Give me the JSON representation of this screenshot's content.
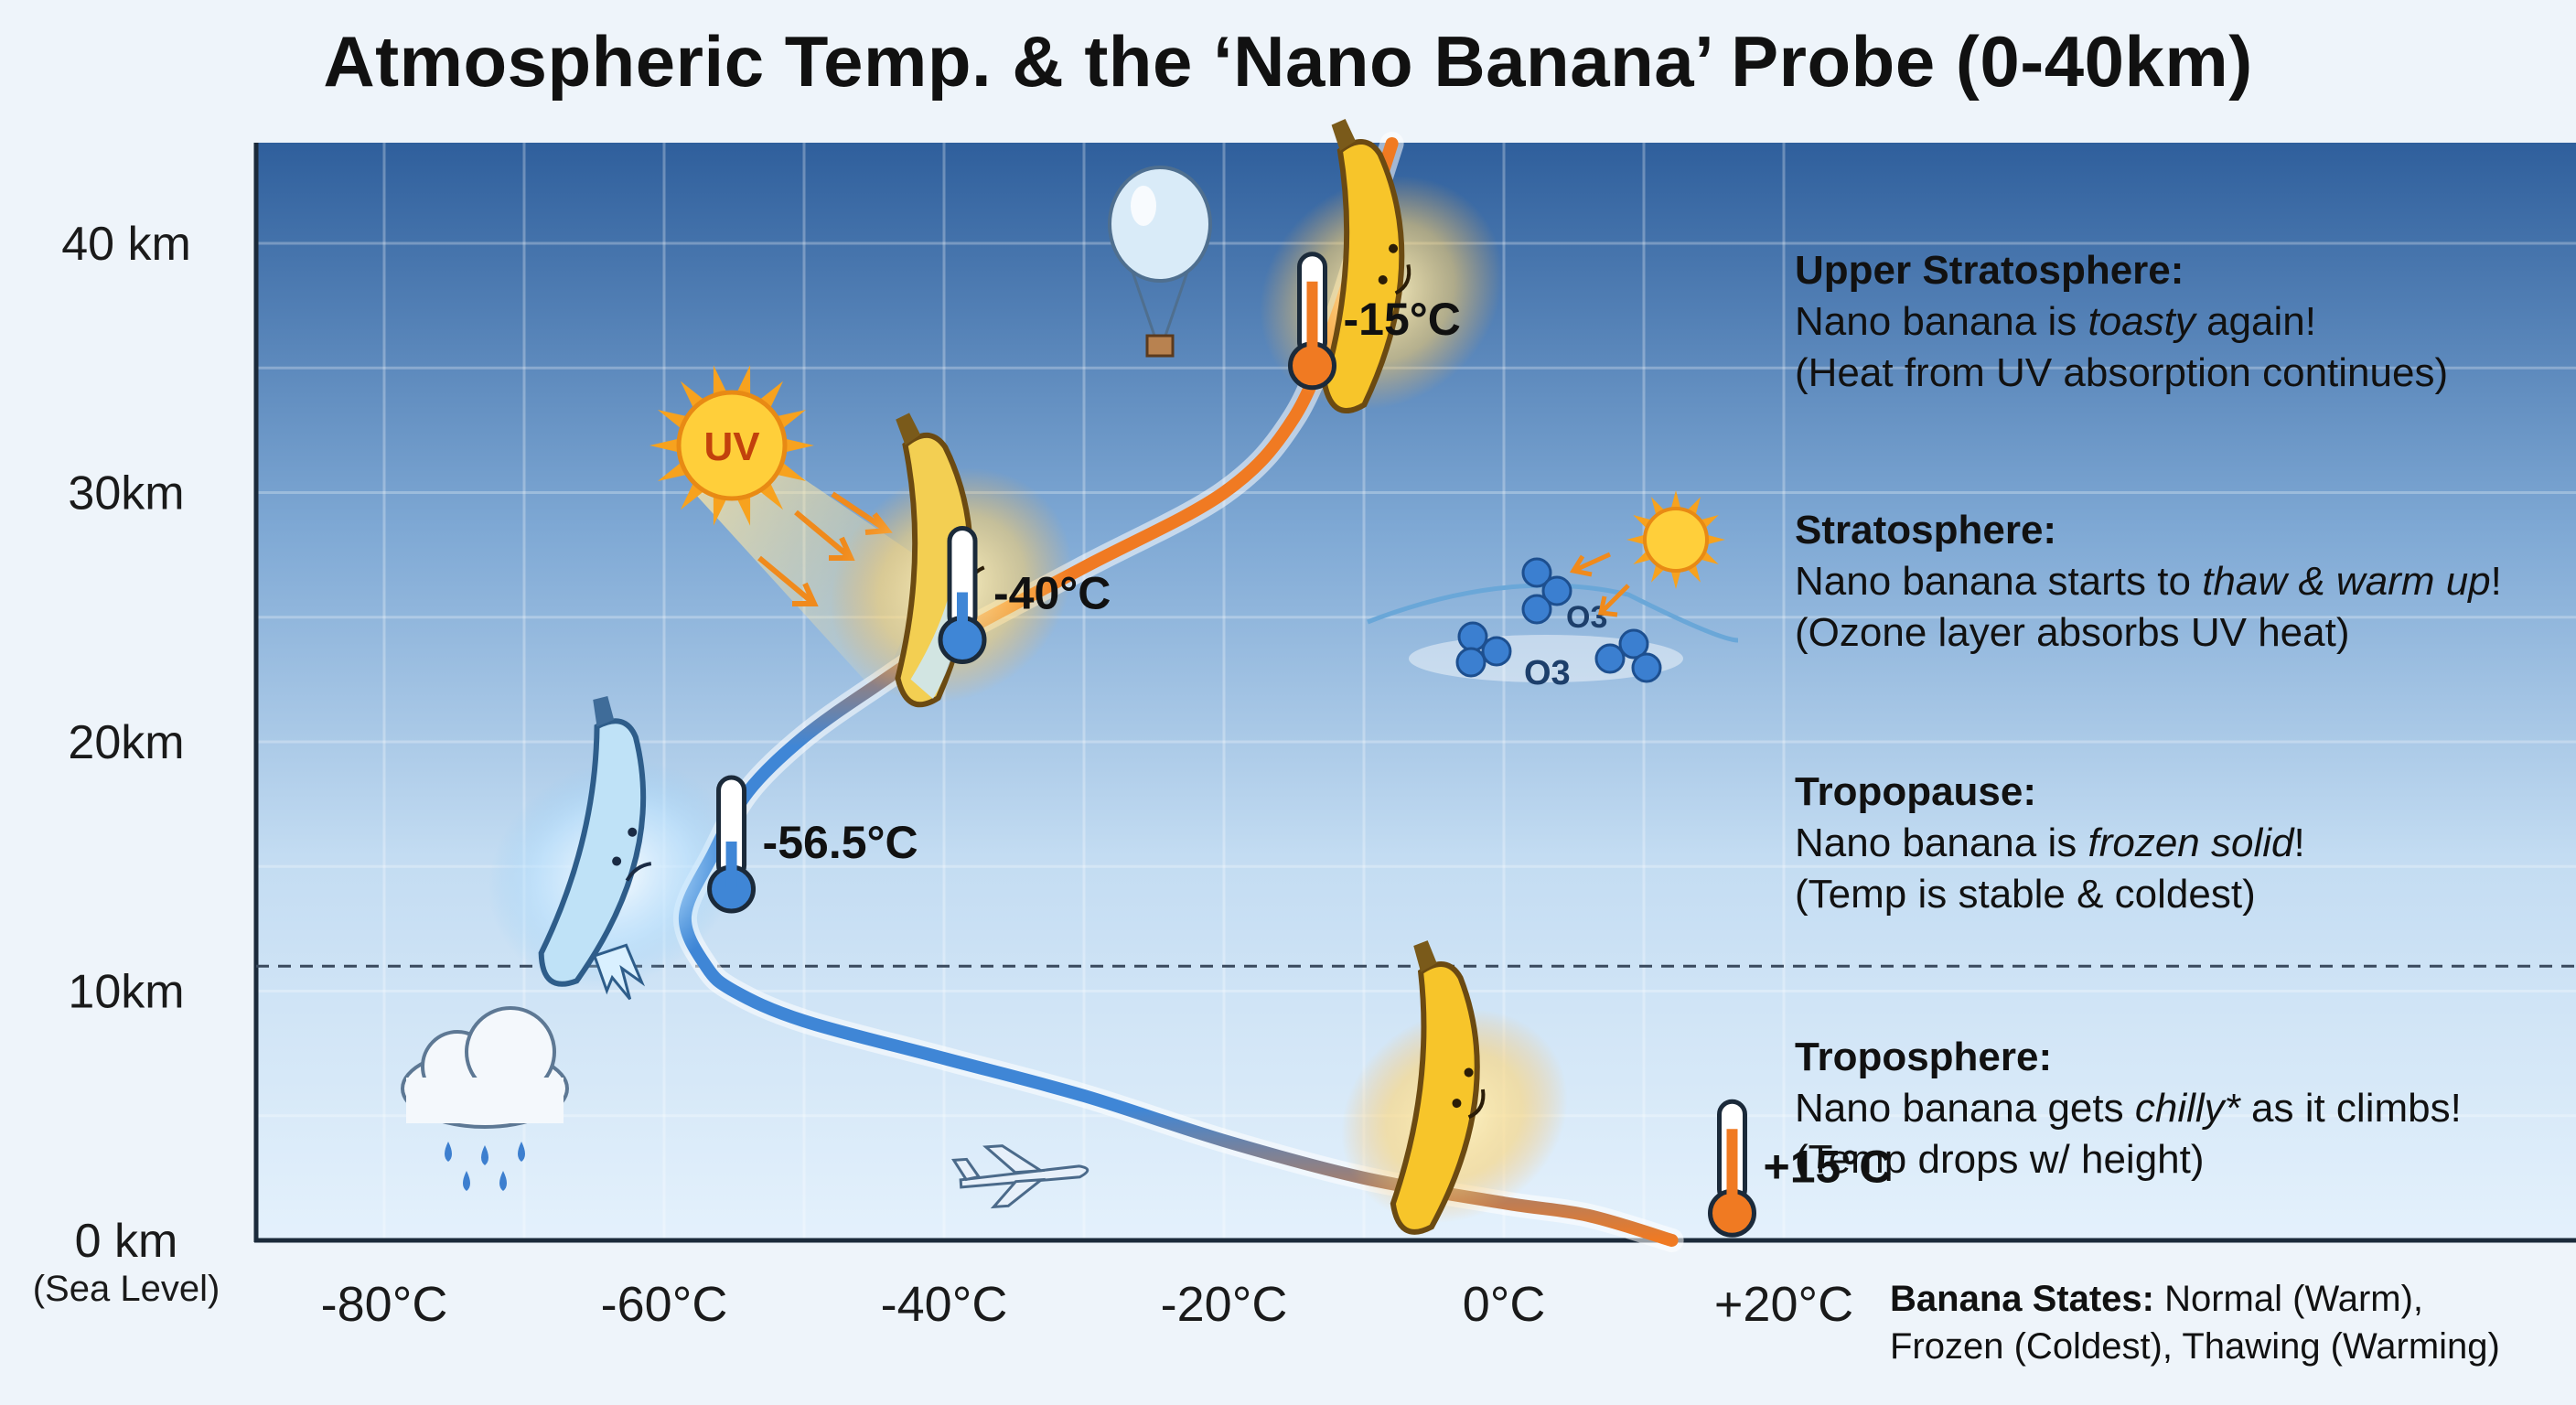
{
  "title": "Atmospheric Temp. & the ‘Nano Banana’ Probe (0-40km)",
  "chart_data": {
    "type": "line",
    "x_ticks": [
      "-80°C",
      "-60°C",
      "-40°C",
      "-20°C",
      "0°C",
      "+20°C"
    ],
    "y_ticks": [
      "0 km",
      "10km",
      "20km",
      "30km",
      "40 km"
    ],
    "y_tick_sub": "(Sea Level)",
    "xlim": [
      -90,
      20
    ],
    "ylim": [
      0,
      44
    ],
    "grid": true,
    "tropopause_altitude_km": 11,
    "series": [
      {
        "x": [
          12,
          6,
          0,
          -10,
          -20,
          -30,
          -40,
          -50,
          -55,
          -57,
          -58.5,
          -56.5,
          -54,
          -50,
          -45,
          -40,
          -30,
          -20,
          -15,
          -12,
          -10,
          -8
        ],
        "y": [
          0,
          1,
          1.5,
          2.5,
          4,
          5.8,
          7.3,
          8.8,
          10,
          11,
          13,
          15.5,
          18,
          20.2,
          22.2,
          24,
          27,
          30,
          33,
          37,
          40.5,
          44
        ]
      }
    ],
    "markers": [
      {
        "label": "+15°C",
        "x": 15,
        "y": 3
      },
      {
        "label": "-56.5°C",
        "x": -56.5,
        "y": 16
      },
      {
        "label": "-40°C",
        "x": -40,
        "y": 26
      },
      {
        "label": "-15°C",
        "x": -15,
        "y": 37
      }
    ]
  },
  "icons": {
    "uv_sun_label": "UV",
    "ozone_label_1": "O3",
    "ozone_label_2": "O3"
  },
  "layers": [
    {
      "heading": "Upper Stratosphere:",
      "line_pre": "Nano banana is ",
      "line_em": "toasty",
      "line_post": " again!",
      "note": "(Heat from UV absorption continues)"
    },
    {
      "heading": "Stratosphere:",
      "line_pre": "Nano banana starts to ",
      "line_em": "thaw & warm up",
      "line_post": "!",
      "note": "(Ozone layer absorbs UV heat)"
    },
    {
      "heading": "Tropopause:",
      "line_pre": "Nano banana is ",
      "line_em": "frozen solid",
      "line_post": "!",
      "note": "(Temp is stable & coldest)"
    },
    {
      "heading": "Troposphere:",
      "line_pre": "Nano banana gets ",
      "line_em": "chilly*",
      "line_post": " as it climbs!",
      "note": "(Temp drops w/ height)"
    }
  ],
  "legend": {
    "heading": "Banana States:",
    "line1": " Normal (Warm),",
    "line2": "Frozen (Coldest), Thawing (Warming)"
  },
  "colors": {
    "warm_line": "#f07a22",
    "cold_line": "#3f86d6",
    "banana": "#f7c52a",
    "frozen": "#9fd3f5",
    "sky_top": "#2f5f9c",
    "sky_bottom": "#dfeefb"
  }
}
